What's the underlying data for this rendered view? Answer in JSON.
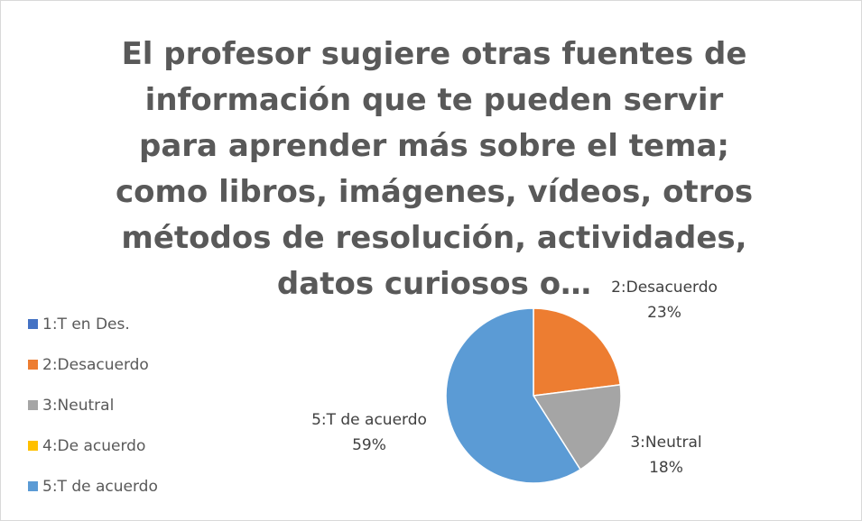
{
  "chart_data": {
    "type": "pie",
    "title": "El profesor sugiere otras fuentes de información que te pueden servir para aprender más sobre el tema; como libros, imágenes, vídeos, otros métodos de resolución, actividades, datos curiosos o…",
    "categories": [
      "1:T en Des.",
      "2:Desacuerdo",
      "3:Neutral",
      "4:De acuerdo",
      "5:T de acuerdo"
    ],
    "values": [
      0,
      23,
      18,
      0,
      59
    ],
    "value_labels": [
      null,
      "23%",
      "18%",
      null,
      "59%"
    ],
    "colors": [
      "#4472c4",
      "#ed7d31",
      "#a5a5a5",
      "#ffc000",
      "#5b9bd5"
    ],
    "legend": "left"
  }
}
